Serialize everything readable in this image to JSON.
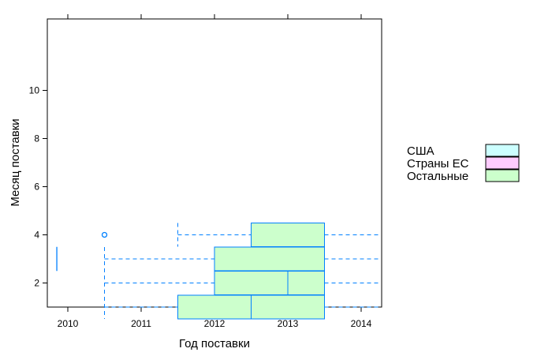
{
  "chart_data": {
    "type": "boxplot",
    "title": "",
    "xlabel": "Год поставки",
    "ylabel": "Месяц поставки",
    "xlim": [
      2009.6,
      2014.3
    ],
    "ylim": [
      0,
      12
    ],
    "x_ticks": [
      "2010",
      "2011",
      "2012",
      "2013",
      "2014"
    ],
    "y_ticks": [
      "2",
      "4",
      "6",
      "8",
      "10"
    ],
    "grid": false,
    "legend_position": "right",
    "legend": [
      {
        "name": "США",
        "color": "#ccffff"
      },
      {
        "name": "Страны ЕС",
        "color": "#ffccff"
      },
      {
        "name": "Остальные",
        "color": "#ccffcc"
      }
    ],
    "box_stroke_color": "#0080ff",
    "boxes": [
      {
        "month": 1,
        "whisker_low": 2010.5,
        "q1": 2011.5,
        "median": 2012.5,
        "q3": 2013.5,
        "whisker_high": 2014.3,
        "group": "Остальные"
      },
      {
        "month": 2,
        "whisker_low": 2010.5,
        "q1": 2012.0,
        "median": 2013.0,
        "q3": 2013.5,
        "whisker_high": 2014.3,
        "group": "Остальные"
      },
      {
        "month": 3,
        "whisker_low": 2010.5,
        "q1": 2012.0,
        "median": 2013.5,
        "q3": 2013.5,
        "whisker_high": 2014.3,
        "group": "Остальные"
      },
      {
        "month": 4,
        "whisker_low": 2011.5,
        "q1": 2012.5,
        "median": 2013.5,
        "q3": 2013.5,
        "whisker_high": 2014.3,
        "group": "Остальные"
      }
    ],
    "outliers": [
      {
        "x": 2010.5,
        "y": 4
      }
    ],
    "extra_segments": [
      {
        "x": 2009.85,
        "y_low": 2.5,
        "y_high": 3.5
      }
    ]
  }
}
